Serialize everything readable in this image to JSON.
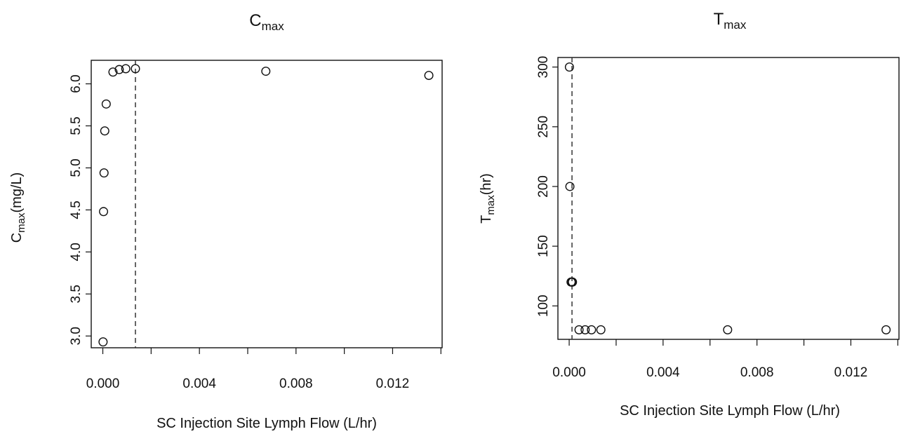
{
  "chart_data": [
    {
      "type": "scatter",
      "title": "C",
      "title_sub": "max",
      "xlabel": "SC Injection Site Lymph Flow (L/hr)",
      "ylabel_main": "C",
      "ylabel_sub": "max",
      "ylabel_unit": "(mg/L)",
      "xlim": [
        -0.00048,
        0.01405
      ],
      "ylim": [
        2.86,
        6.28
      ],
      "x_ticks": [
        0.0,
        0.002,
        0.004,
        0.006,
        0.008,
        0.01,
        0.012,
        0.014
      ],
      "x_tick_labels": [
        "0.000",
        "",
        "0.004",
        "",
        "0.008",
        "",
        "0.012",
        ""
      ],
      "y_ticks": [
        3.0,
        3.5,
        4.0,
        4.5,
        5.0,
        5.5,
        6.0
      ],
      "y_tick_labels": [
        "3.0",
        "3.5",
        "4.0",
        "4.5",
        "5.0",
        "5.5",
        "6.0"
      ],
      "reference_line_x": 0.00135,
      "points": [
        {
          "x": 1e-05,
          "y": 2.93
        },
        {
          "x": 3e-05,
          "y": 4.48
        },
        {
          "x": 5e-05,
          "y": 4.94
        },
        {
          "x": 8e-05,
          "y": 5.44
        },
        {
          "x": 0.00014,
          "y": 5.76
        },
        {
          "x": 0.00042,
          "y": 6.14
        },
        {
          "x": 0.00068,
          "y": 6.17
        },
        {
          "x": 0.00095,
          "y": 6.18
        },
        {
          "x": 0.00135,
          "y": 6.18
        },
        {
          "x": 0.00675,
          "y": 6.15
        },
        {
          "x": 0.0135,
          "y": 6.1
        }
      ]
    },
    {
      "type": "scatter",
      "title": "T",
      "title_sub": "max",
      "xlabel": "SC Injection Site Lymph Flow (L/hr)",
      "ylabel_main": "T",
      "ylabel_sub": "max",
      "ylabel_unit": "(hr)",
      "xlim": [
        -0.00048,
        0.01405
      ],
      "ylim": [
        72,
        308
      ],
      "x_ticks": [
        0.0,
        0.002,
        0.004,
        0.006,
        0.008,
        0.01,
        0.012,
        0.014
      ],
      "x_tick_labels": [
        "0.000",
        "",
        "0.004",
        "",
        "0.008",
        "",
        "0.012",
        ""
      ],
      "y_ticks": [
        100,
        150,
        200,
        250,
        300
      ],
      "y_tick_labels": [
        "100",
        "150",
        "200",
        "250",
        "300"
      ],
      "reference_line_x": 0.00012,
      "points": [
        {
          "x": 1e-05,
          "y": 300
        },
        {
          "x": 3e-05,
          "y": 200
        },
        {
          "x": 8e-05,
          "y": 120
        },
        {
          "x": 0.00012,
          "y": 120
        },
        {
          "x": 0.00014,
          "y": 120
        },
        {
          "x": 0.00042,
          "y": 80
        },
        {
          "x": 0.00068,
          "y": 80
        },
        {
          "x": 0.00095,
          "y": 80
        },
        {
          "x": 0.00135,
          "y": 80
        },
        {
          "x": 0.00675,
          "y": 80
        },
        {
          "x": 0.0135,
          "y": 80
        }
      ]
    }
  ]
}
